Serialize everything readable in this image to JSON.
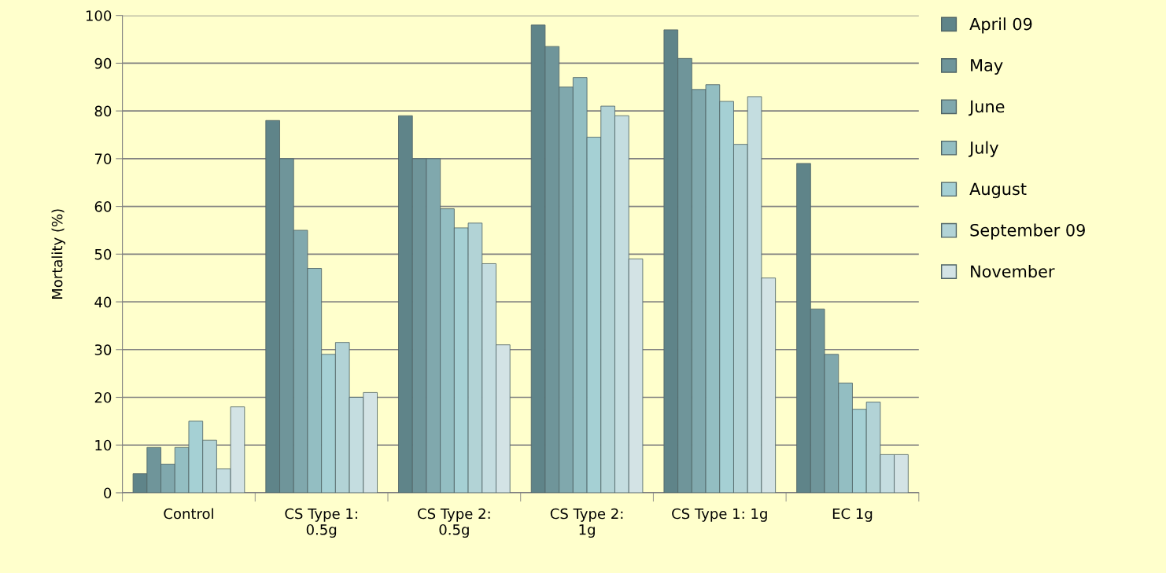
{
  "chart_data": {
    "type": "bar",
    "ylabel": "Mortality (%)",
    "categories": [
      "Control",
      "CS Type 1:\n0.5g",
      "CS Type 2:\n0.5g",
      "CS Type 2:\n1g",
      "CS Type 1: 1g",
      "EC 1g"
    ],
    "series": [
      {
        "name": "April 09",
        "color": "#5f8489",
        "values": [
          4,
          78,
          79,
          98,
          97,
          69
        ]
      },
      {
        "name": "May",
        "color": "#6f959a",
        "values": [
          9.5,
          70,
          70,
          93.5,
          91,
          38.5
        ]
      },
      {
        "name": "June",
        "color": "#80a8ad",
        "values": [
          6,
          55,
          70,
          85,
          84.5,
          29
        ]
      },
      {
        "name": "July",
        "color": "#93bec2",
        "values": [
          9.5,
          47,
          59.5,
          87,
          85.5,
          23
        ]
      },
      {
        "name": "August",
        "color": "#a5d0d4",
        "values": [
          15,
          29,
          55.5,
          74.5,
          82,
          17.5
        ]
      },
      {
        "name": "September 09",
        "color": "#b2d3d6",
        "values": [
          11,
          31.5,
          56.5,
          81,
          73,
          19
        ]
      },
      {
        "color": "#c4dde0",
        "values": [
          5,
          20,
          48,
          79,
          83,
          8
        ]
      },
      {
        "name": "November",
        "color": "#d3e3e5",
        "values": [
          18,
          21,
          31,
          49,
          45,
          8
        ]
      }
    ],
    "ylim": [
      0,
      100
    ],
    "yticks": [
      0,
      10,
      20,
      30,
      40,
      50,
      60,
      70,
      80,
      90,
      100
    ],
    "grid": "y",
    "legend": "right"
  }
}
